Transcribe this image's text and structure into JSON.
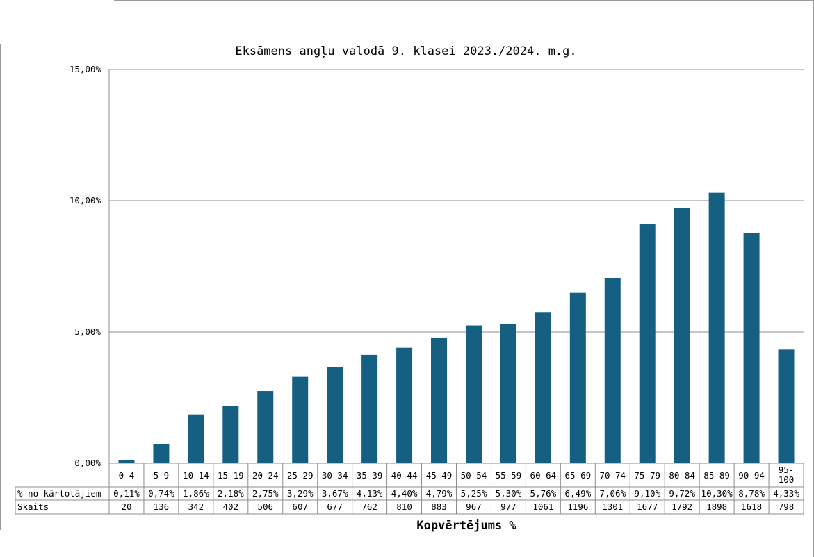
{
  "chart_data": {
    "type": "bar",
    "title": "Eksāmens angļu valodā 9. klasei 2023./2024. m.g.",
    "xlabel": "Kopvērtējums %",
    "ylabel": "",
    "ylim": [
      0,
      15
    ],
    "y_ticks": [
      "0,00%",
      "5,00%",
      "10,00%",
      "15,00%"
    ],
    "grid": true,
    "bar_color": "#155f82",
    "categories": [
      "0-4",
      "5-9",
      "10-14",
      "15-19",
      "20-24",
      "25-29",
      "30-34",
      "35-39",
      "40-44",
      "45-49",
      "50-54",
      "55-59",
      "60-64",
      "65-69",
      "70-74",
      "75-79",
      "80-84",
      "85-89",
      "90-94",
      "95-100"
    ],
    "category_lines": [
      [
        "0-4"
      ],
      [
        "5-9"
      ],
      [
        "10-14"
      ],
      [
        "15-19"
      ],
      [
        "20-24"
      ],
      [
        "25-29"
      ],
      [
        "30-34"
      ],
      [
        "35-39"
      ],
      [
        "40-44"
      ],
      [
        "45-49"
      ],
      [
        "50-54"
      ],
      [
        "55-59"
      ],
      [
        "60-64"
      ],
      [
        "65-69"
      ],
      [
        "70-74"
      ],
      [
        "75-79"
      ],
      [
        "80-84"
      ],
      [
        "85-89"
      ],
      [
        "90-94"
      ],
      [
        "95-",
        "100"
      ]
    ],
    "values": [
      0.11,
      0.74,
      1.86,
      2.18,
      2.75,
      3.29,
      3.67,
      4.13,
      4.4,
      4.79,
      5.25,
      5.3,
      5.76,
      6.49,
      7.06,
      9.1,
      9.72,
      10.3,
      8.78,
      4.33
    ],
    "table": {
      "rows": [
        {
          "label": "% no kārtotājiem",
          "cells": [
            "0,11%",
            "0,74%",
            "1,86%",
            "2,18%",
            "2,75%",
            "3,29%",
            "3,67%",
            "4,13%",
            "4,40%",
            "4,79%",
            "5,25%",
            "5,30%",
            "5,76%",
            "6,49%",
            "7,06%",
            "9,10%",
            "9,72%",
            "10,30%",
            "8,78%",
            "4,33%"
          ]
        },
        {
          "label": "Skaits",
          "cells": [
            "20",
            "136",
            "342",
            "402",
            "506",
            "607",
            "677",
            "762",
            "810",
            "883",
            "967",
            "977",
            "1061",
            "1196",
            "1301",
            "1677",
            "1792",
            "1898",
            "1618",
            "798"
          ]
        }
      ]
    }
  }
}
